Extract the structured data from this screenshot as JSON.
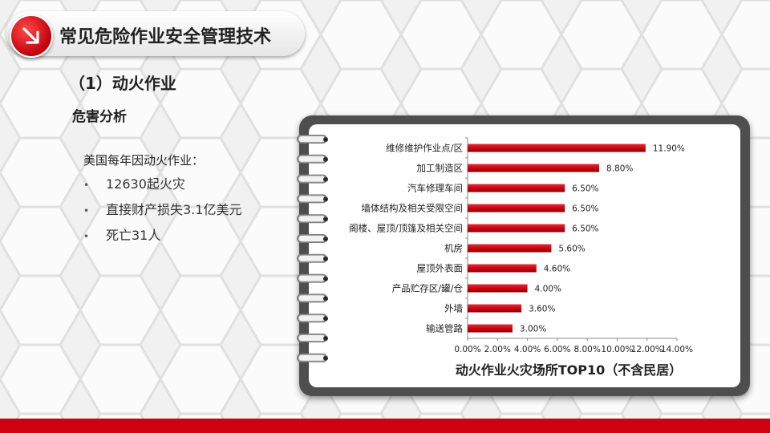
{
  "header": {
    "title": "常见危险作业安全管理技术"
  },
  "section": {
    "title": "（1）动火作业"
  },
  "subsection": {
    "title": "危害分析"
  },
  "content": {
    "intro": "美国每年因动火作业：",
    "bullets": [
      "12630起火灾",
      "直接财产损失3.1亿美元",
      "死亡31人"
    ]
  },
  "colors": {
    "accent": "#d0000f",
    "bar": "#c8000c",
    "board": "#4e4e4e"
  },
  "icons": {
    "title_circle": "arrow-down-right-icon",
    "bullet": "bullet-dot-icon",
    "binding": "spiral-ring-icon"
  },
  "chart_data": {
    "type": "bar",
    "orientation": "horizontal",
    "title": "动火作业火灾场所TOP10（不含民居）",
    "categories": [
      "维修维护作业点/区",
      "加工制造区",
      "汽车修理车间",
      "墙体结构及相关受限空间",
      "阁楼、屋顶/顶篷及相关空间",
      "机房",
      "屋顶外表面",
      "产品贮存区/罐/仓",
      "外墙",
      "输送管路"
    ],
    "values": [
      11.9,
      8.8,
      6.5,
      6.5,
      6.5,
      5.6,
      4.6,
      4.0,
      3.6,
      3.0
    ],
    "data_labels": [
      "11.90%",
      "8.80%",
      "6.50%",
      "6.50%",
      "6.50%",
      "5.60%",
      "4.60%",
      "4.00%",
      "3.60%",
      "3.00%"
    ],
    "xlim": [
      0,
      14
    ],
    "xticks": [
      "0.00%",
      "2.00%",
      "4.00%",
      "6.00%",
      "8.00%",
      "10.00%",
      "12.00%",
      "14.00%"
    ],
    "grid": false,
    "legend": "none"
  }
}
